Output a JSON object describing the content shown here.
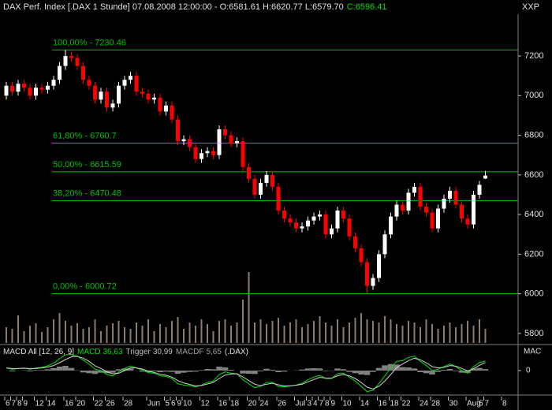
{
  "chart_data": {
    "type": "candlestick",
    "title": "DAX Perf. Index [.DAX  1 Stunde] 07.08.2008 12:00:00 - O:6581.61 H:6620.77 L:6579.70",
    "close_label": "C:6596.41",
    "corner_label": "XXP",
    "categories": [
      "6",
      "7",
      "8",
      "9",
      null,
      "12",
      null,
      "14",
      null,
      null,
      "16",
      null,
      "20",
      null,
      null,
      "22",
      null,
      "26",
      null,
      null,
      "28",
      null,
      null,
      null,
      "Jun",
      null,
      null,
      "5",
      "6",
      "9",
      "10",
      null,
      null,
      "12",
      null,
      null,
      "16",
      null,
      "18",
      null,
      null,
      "20",
      null,
      "24",
      null,
      null,
      "26",
      null,
      null,
      "Jul",
      null,
      "3",
      "4",
      "7",
      "8",
      "9",
      null,
      "10",
      null,
      null,
      "14",
      null,
      null,
      "16",
      null,
      "18",
      null,
      "22",
      null,
      null,
      "24",
      null,
      "28",
      null,
      null,
      "30",
      null,
      null,
      "Aug",
      null,
      "6",
      "7",
      null,
      null,
      "8"
    ],
    "open": [
      7000,
      7050,
      7020,
      7060,
      7040,
      7000,
      7040,
      7030,
      7050,
      7080,
      7150,
      7200,
      7190,
      7150,
      7080,
      7050,
      6980,
      7020,
      6940,
      6960,
      7050,
      7080,
      7100,
      7020,
      7010,
      6980,
      6990,
      6920,
      6950,
      6880,
      6770,
      6780,
      6740,
      6680,
      6710,
      6720,
      6700,
      6830,
      6800,
      6760,
      6770,
      6640,
      6580,
      6500,
      6560,
      6600,
      6540,
      6420,
      6380,
      6360,
      6330,
      6340,
      6370,
      6390,
      6400,
      6300,
      6330,
      6420,
      6380,
      6290,
      6230,
      6160,
      6040,
      6080,
      6200,
      6300,
      6390,
      6450,
      6420,
      6510,
      6540,
      6440,
      6410,
      6330,
      6430,
      6480,
      6520,
      6450,
      6380,
      6350,
      6500,
      6581.61,
      null,
      null,
      null
    ],
    "high": [
      7070,
      7070,
      7080,
      7080,
      7060,
      7060,
      7060,
      7070,
      7100,
      7170,
      7230,
      7220,
      7210,
      7170,
      7100,
      7070,
      7040,
      7040,
      6980,
      7070,
      7100,
      7120,
      7120,
      7040,
      7030,
      7010,
      7010,
      6970,
      6970,
      6900,
      6800,
      6800,
      6760,
      6730,
      6740,
      6740,
      6850,
      6850,
      6820,
      6790,
      6790,
      6660,
      6600,
      6580,
      6620,
      6620,
      6560,
      6440,
      6400,
      6380,
      6360,
      6390,
      6410,
      6420,
      6420,
      6350,
      6440,
      6440,
      6400,
      6310,
      6250,
      6180,
      6100,
      6220,
      6320,
      6410,
      6470,
      6470,
      6530,
      6560,
      6560,
      6460,
      6430,
      6450,
      6500,
      6540,
      6540,
      6470,
      6400,
      6520,
      6570,
      6620.77,
      null,
      null,
      null
    ],
    "low": [
      6980,
      7000,
      7000,
      7020,
      6980,
      6980,
      7010,
      7010,
      7030,
      7060,
      7130,
      7170,
      7130,
      7060,
      7030,
      6960,
      6960,
      6920,
      6920,
      6940,
      7030,
      7060,
      7000,
      6990,
      6960,
      6960,
      6900,
      6900,
      6860,
      6750,
      6750,
      6720,
      6660,
      6660,
      6690,
      6680,
      6680,
      6780,
      6740,
      6740,
      6620,
      6560,
      6480,
      6480,
      6540,
      6520,
      6400,
      6360,
      6340,
      6310,
      6310,
      6320,
      6350,
      6370,
      6280,
      6280,
      6310,
      6360,
      6270,
      6210,
      6140,
      6001,
      6020,
      6060,
      6180,
      6280,
      6370,
      6400,
      6400,
      6490,
      6420,
      6390,
      6310,
      6310,
      6410,
      6460,
      6430,
      6360,
      6330,
      6330,
      6480,
      6579.7,
      null,
      null,
      null
    ],
    "close": [
      7050,
      7020,
      7060,
      7040,
      7000,
      7040,
      7030,
      7050,
      7080,
      7150,
      7200,
      7190,
      7150,
      7080,
      7050,
      6980,
      7020,
      6940,
      6960,
      7050,
      7080,
      7100,
      7020,
      7010,
      6980,
      6990,
      6920,
      6950,
      6880,
      6770,
      6780,
      6740,
      6680,
      6710,
      6720,
      6700,
      6830,
      6800,
      6760,
      6770,
      6640,
      6580,
      6500,
      6560,
      6600,
      6540,
      6420,
      6380,
      6360,
      6330,
      6340,
      6370,
      6390,
      6400,
      6300,
      6330,
      6420,
      6380,
      6290,
      6230,
      6160,
      6040,
      6080,
      6200,
      6300,
      6390,
      6450,
      6420,
      6510,
      6540,
      6440,
      6410,
      6330,
      6430,
      6480,
      6520,
      6450,
      6380,
      6350,
      6500,
      6550,
      6596.41,
      null,
      null,
      null
    ],
    "up_color": "#ffffff",
    "down_color": "#ff0000",
    "ylim": [
      5752,
      7411
    ],
    "yticks": [
      5800,
      6000,
      6200,
      6400,
      6600,
      6800,
      7000,
      7200
    ],
    "levels": [
      {
        "value": 7230.46,
        "label": "100,00% - 7230.46"
      },
      {
        "value": 6760.7,
        "label": "61,80% - 6760.7"
      },
      {
        "value": 6615.59,
        "label": "50,00% - 6615.59"
      },
      {
        "value": 6470.48,
        "label": "38,20% - 6470.48"
      },
      {
        "value": 6000.72,
        "label": "0,00% - 6000.72"
      }
    ],
    "level_color": "#00c000",
    "volume": {
      "color": "#8c7c70",
      "ylim": [
        0,
        100
      ],
      "values": [
        20,
        18,
        35,
        15,
        22,
        25,
        14,
        20,
        30,
        38,
        28,
        22,
        25,
        18,
        20,
        30,
        15,
        22,
        25,
        28,
        20,
        18,
        26,
        22,
        30,
        15,
        24,
        20,
        28,
        33,
        18,
        26,
        22,
        30,
        24,
        15,
        28,
        30,
        22,
        26,
        55,
        90,
        26,
        30,
        24,
        28,
        32,
        22,
        26,
        30,
        20,
        24,
        28,
        34,
        26,
        22,
        30,
        20,
        26,
        32,
        38,
        30,
        28,
        26,
        34,
        30,
        24,
        22,
        28,
        26,
        20,
        30,
        24,
        18,
        22,
        26,
        20,
        24,
        28,
        22,
        30,
        18,
        null,
        null,
        null
      ]
    },
    "macd": {
      "title": "MACD All [12, 26, 9]",
      "source": "(.DAX)",
      "axis_label": "MAC",
      "ylim": [
        -90,
        90
      ],
      "yticks": [
        0
      ],
      "series": [
        {
          "name": "MACD",
          "value_label": "36,63",
          "color": "#00e000",
          "kind": "line",
          "values": [
            10,
            5,
            8,
            10,
            5,
            10,
            12,
            18,
            28,
            45,
            60,
            62,
            55,
            40,
            25,
            5,
            0,
            -15,
            -20,
            -5,
            8,
            18,
            10,
            2,
            -8,
            -10,
            -20,
            -22,
            -30,
            -50,
            -55,
            -58,
            -62,
            -55,
            -45,
            -40,
            -15,
            -5,
            -10,
            -12,
            -35,
            -50,
            -65,
            -60,
            -45,
            -45,
            -60,
            -62,
            -58,
            -55,
            -48,
            -35,
            -25,
            -18,
            -30,
            -30,
            -12,
            -10,
            -25,
            -40,
            -60,
            -80,
            -75,
            -50,
            -20,
            10,
            35,
            38,
            50,
            55,
            35,
            20,
            0,
            5,
            15,
            25,
            15,
            0,
            -10,
            15,
            30,
            36.63,
            null,
            null,
            null
          ]
        },
        {
          "name": "Trigger",
          "value_label": "30,99",
          "color": "#d0d0d0",
          "kind": "line",
          "values": [
            10,
            8,
            8,
            9,
            8,
            8,
            10,
            13,
            19,
            30,
            42,
            52,
            54,
            47,
            35,
            18,
            8,
            -5,
            -12,
            -10,
            0,
            10,
            10,
            6,
            -2,
            -7,
            -14,
            -18,
            -25,
            -38,
            -47,
            -53,
            -58,
            -57,
            -51,
            -45,
            -30,
            -17,
            -13,
            -12,
            -24,
            -38,
            -52,
            -57,
            -52,
            -48,
            -54,
            -58,
            -58,
            -56,
            -52,
            -43,
            -34,
            -26,
            -28,
            -29,
            -20,
            -15,
            -20,
            -30,
            -45,
            -63,
            -70,
            -60,
            -40,
            -15,
            12,
            25,
            38,
            47,
            41,
            30,
            15,
            10,
            12,
            19,
            17,
            8,
            -1,
            7,
            20,
            30.99,
            null,
            null,
            null
          ]
        },
        {
          "name": "MACDF",
          "value_label": "5,65",
          "color": "#808080",
          "kind": "bar",
          "values": [
            0,
            -3,
            0,
            1,
            -3,
            2,
            2,
            5,
            9,
            15,
            18,
            10,
            1,
            -7,
            -10,
            -13,
            -8,
            -10,
            -8,
            5,
            8,
            8,
            0,
            -4,
            -6,
            -3,
            -6,
            -4,
            -5,
            -12,
            -8,
            -5,
            -4,
            2,
            6,
            5,
            15,
            12,
            3,
            0,
            -11,
            -12,
            -13,
            -3,
            7,
            3,
            -6,
            -4,
            0,
            1,
            4,
            8,
            9,
            8,
            -2,
            -1,
            8,
            5,
            -5,
            -10,
            -15,
            -17,
            -5,
            10,
            20,
            25,
            23,
            13,
            12,
            8,
            -6,
            -10,
            -15,
            -5,
            3,
            6,
            -2,
            -8,
            -9,
            8,
            10,
            5.65,
            null,
            null,
            null
          ]
        }
      ]
    }
  }
}
